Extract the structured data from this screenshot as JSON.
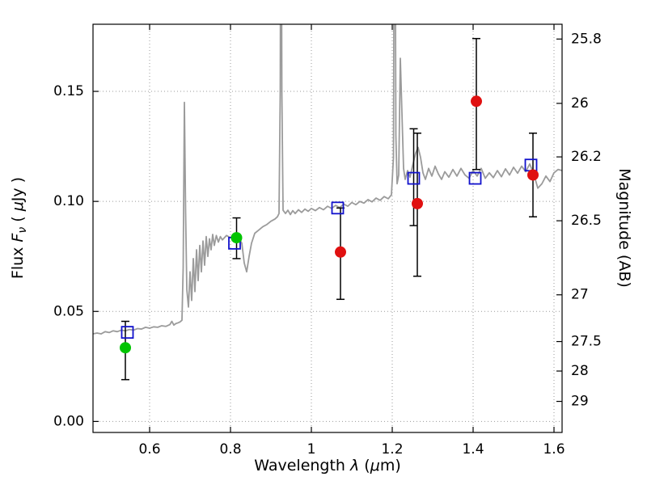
{
  "figure": {
    "background": "#ffffff",
    "axes_color": "#000000",
    "grid_color": "#999999"
  },
  "chart_data": {
    "type": "line",
    "title": "",
    "xlabel_parts": {
      "t1": "Wavelength ",
      "i1": "λ",
      "t2": " (",
      "i2": "μ",
      "t3": "m)"
    },
    "ylabel_parts": {
      "t1": "Flux ",
      "i1": "F",
      "sub": "ν",
      "t2": " ( ",
      "i2": "μ",
      "t3": "Jy )"
    },
    "xlim": [
      0.46,
      1.62
    ],
    "ylim_flux": [
      -0.005,
      0.1805
    ],
    "x_ticks": [
      0.6,
      0.8,
      1.0,
      1.2,
      1.4,
      1.6
    ],
    "x_tick_labels": [
      "0.6",
      "0.8",
      "1",
      "1.2",
      "1.4",
      "1.6"
    ],
    "y_ticks_flux": [
      0.0,
      0.05,
      0.1,
      0.15
    ],
    "y_tick_labels_flux": [
      "0.00",
      "0.05",
      "0.10",
      "0.15"
    ],
    "right_axis": {
      "label": "Magnitude (AB)",
      "ticks": [
        25.8,
        26,
        26.2,
        26.5,
        27,
        27.5,
        28,
        29
      ],
      "tick_labels": [
        "25.8",
        "26",
        "26.2",
        "26.5",
        "27",
        "27.5",
        "28",
        "29"
      ],
      "zero_point": 23.9
    },
    "series": {
      "spectrum": {
        "name": "model-spectrum",
        "color": "#9b9b9b",
        "linewidth": 1.8,
        "points": [
          [
            0.46,
            0.0398
          ],
          [
            0.47,
            0.0402
          ],
          [
            0.48,
            0.0398
          ],
          [
            0.49,
            0.0408
          ],
          [
            0.5,
            0.0404
          ],
          [
            0.51,
            0.0412
          ],
          [
            0.52,
            0.0408
          ],
          [
            0.53,
            0.0415
          ],
          [
            0.54,
            0.0412
          ],
          [
            0.55,
            0.0418
          ],
          [
            0.56,
            0.0415
          ],
          [
            0.57,
            0.0422
          ],
          [
            0.58,
            0.042
          ],
          [
            0.59,
            0.0428
          ],
          [
            0.6,
            0.0424
          ],
          [
            0.61,
            0.043
          ],
          [
            0.62,
            0.0428
          ],
          [
            0.63,
            0.0435
          ],
          [
            0.64,
            0.0432
          ],
          [
            0.65,
            0.044
          ],
          [
            0.655,
            0.0455
          ],
          [
            0.66,
            0.0438
          ],
          [
            0.665,
            0.0445
          ],
          [
            0.67,
            0.0448
          ],
          [
            0.675,
            0.0452
          ],
          [
            0.68,
            0.046
          ],
          [
            0.683,
            0.07
          ],
          [
            0.686,
            0.145
          ],
          [
            0.689,
            0.095
          ],
          [
            0.692,
            0.06
          ],
          [
            0.696,
            0.052
          ],
          [
            0.7,
            0.068
          ],
          [
            0.704,
            0.055
          ],
          [
            0.708,
            0.074
          ],
          [
            0.712,
            0.059
          ],
          [
            0.716,
            0.078
          ],
          [
            0.72,
            0.064
          ],
          [
            0.724,
            0.08
          ],
          [
            0.728,
            0.068
          ],
          [
            0.732,
            0.082
          ],
          [
            0.736,
            0.071
          ],
          [
            0.74,
            0.084
          ],
          [
            0.744,
            0.075
          ],
          [
            0.748,
            0.083
          ],
          [
            0.752,
            0.078
          ],
          [
            0.756,
            0.085
          ],
          [
            0.76,
            0.08
          ],
          [
            0.765,
            0.0845
          ],
          [
            0.77,
            0.0815
          ],
          [
            0.775,
            0.084
          ],
          [
            0.78,
            0.0825
          ],
          [
            0.79,
            0.0845
          ],
          [
            0.8,
            0.0835
          ],
          [
            0.81,
            0.0855
          ],
          [
            0.82,
            0.084
          ],
          [
            0.828,
            0.081
          ],
          [
            0.834,
            0.072
          ],
          [
            0.84,
            0.068
          ],
          [
            0.846,
            0.075
          ],
          [
            0.852,
            0.081
          ],
          [
            0.86,
            0.0855
          ],
          [
            0.87,
            0.087
          ],
          [
            0.88,
            0.0885
          ],
          [
            0.89,
            0.0895
          ],
          [
            0.9,
            0.091
          ],
          [
            0.91,
            0.092
          ],
          [
            0.916,
            0.093
          ],
          [
            0.92,
            0.0945
          ],
          [
            0.923,
            0.15
          ],
          [
            0.925,
            0.3
          ],
          [
            0.927,
            0.15
          ],
          [
            0.93,
            0.096
          ],
          [
            0.936,
            0.0945
          ],
          [
            0.942,
            0.096
          ],
          [
            0.948,
            0.094
          ],
          [
            0.954,
            0.0958
          ],
          [
            0.96,
            0.0945
          ],
          [
            0.968,
            0.0962
          ],
          [
            0.976,
            0.095
          ],
          [
            0.984,
            0.0965
          ],
          [
            0.992,
            0.0955
          ],
          [
            1.0,
            0.0968
          ],
          [
            1.01,
            0.0958
          ],
          [
            1.02,
            0.0972
          ],
          [
            1.03,
            0.0962
          ],
          [
            1.04,
            0.0978
          ],
          [
            1.05,
            0.0968
          ],
          [
            1.06,
            0.0982
          ],
          [
            1.07,
            0.0972
          ],
          [
            1.08,
            0.0988
          ],
          [
            1.09,
            0.0978
          ],
          [
            1.1,
            0.0995
          ],
          [
            1.11,
            0.0985
          ],
          [
            1.12,
            0.1
          ],
          [
            1.13,
            0.0992
          ],
          [
            1.14,
            0.1008
          ],
          [
            1.15,
            0.0998
          ],
          [
            1.16,
            0.1015
          ],
          [
            1.17,
            0.1005
          ],
          [
            1.18,
            0.1022
          ],
          [
            1.19,
            0.1012
          ],
          [
            1.198,
            0.103
          ],
          [
            1.203,
            0.12
          ],
          [
            1.206,
            0.3
          ],
          [
            1.209,
            0.13
          ],
          [
            1.212,
            0.108
          ],
          [
            1.216,
            0.112
          ],
          [
            1.22,
            0.165
          ],
          [
            1.224,
            0.14
          ],
          [
            1.228,
            0.115
          ],
          [
            1.232,
            0.11
          ],
          [
            1.238,
            0.114
          ],
          [
            1.244,
            0.111
          ],
          [
            1.25,
            0.116
          ],
          [
            1.258,
            0.122
          ],
          [
            1.264,
            0.1245
          ],
          [
            1.27,
            0.12
          ],
          [
            1.276,
            0.113
          ],
          [
            1.282,
            0.11
          ],
          [
            1.29,
            0.115
          ],
          [
            1.298,
            0.1115
          ],
          [
            1.306,
            0.116
          ],
          [
            1.314,
            0.1125
          ],
          [
            1.322,
            0.11
          ],
          [
            1.33,
            0.1135
          ],
          [
            1.34,
            0.111
          ],
          [
            1.35,
            0.1145
          ],
          [
            1.36,
            0.1115
          ],
          [
            1.37,
            0.115
          ],
          [
            1.38,
            0.112
          ],
          [
            1.39,
            0.1105
          ],
          [
            1.4,
            0.114
          ],
          [
            1.41,
            0.1115
          ],
          [
            1.42,
            0.115
          ],
          [
            1.43,
            0.1105
          ],
          [
            1.44,
            0.113
          ],
          [
            1.45,
            0.1108
          ],
          [
            1.46,
            0.114
          ],
          [
            1.47,
            0.1112
          ],
          [
            1.48,
            0.1148
          ],
          [
            1.49,
            0.112
          ],
          [
            1.5,
            0.1155
          ],
          [
            1.51,
            0.1128
          ],
          [
            1.52,
            0.116
          ],
          [
            1.53,
            0.1135
          ],
          [
            1.54,
            0.117
          ],
          [
            1.55,
            0.1125
          ],
          [
            1.56,
            0.106
          ],
          [
            1.57,
            0.108
          ],
          [
            1.58,
            0.1115
          ],
          [
            1.59,
            0.109
          ],
          [
            1.6,
            0.113
          ],
          [
            1.61,
            0.1145
          ],
          [
            1.62,
            0.114
          ]
        ]
      },
      "green_points": {
        "name": "green-filled-circles",
        "marker": "circle",
        "color": "#00c400",
        "points": [
          {
            "x": 0.54,
            "y": 0.0335,
            "lo": 0.0145,
            "hi": 0.012
          },
          {
            "x": 0.815,
            "y": 0.0835,
            "lo": 0.0095,
            "hi": 0.009
          }
        ]
      },
      "blue_squares": {
        "name": "blue-open-squares",
        "marker": "open-square",
        "color": "#1111cc",
        "points": [
          {
            "x": 0.545,
            "y": 0.0405,
            "lo": 0,
            "hi": 0
          },
          {
            "x": 0.81,
            "y": 0.081,
            "lo": 0,
            "hi": 0
          },
          {
            "x": 1.065,
            "y": 0.097,
            "lo": 0,
            "hi": 0
          },
          {
            "x": 1.253,
            "y": 0.1105,
            "lo": 0.0215,
            "hi": 0.0225
          },
          {
            "x": 1.405,
            "y": 0.1105,
            "lo": 0,
            "hi": 0
          },
          {
            "x": 1.543,
            "y": 0.1165,
            "lo": 0,
            "hi": 0
          }
        ]
      },
      "red_points": {
        "name": "red-filled-circles",
        "marker": "circle",
        "color": "#e01010",
        "points": [
          {
            "x": 1.072,
            "y": 0.077,
            "lo": 0.0215,
            "hi": 0.02
          },
          {
            "x": 1.262,
            "y": 0.099,
            "lo": 0.033,
            "hi": 0.032
          },
          {
            "x": 1.408,
            "y": 0.1455,
            "lo": 0.031,
            "hi": 0.0285
          },
          {
            "x": 1.548,
            "y": 0.112,
            "lo": 0.019,
            "hi": 0.019
          }
        ]
      }
    }
  }
}
